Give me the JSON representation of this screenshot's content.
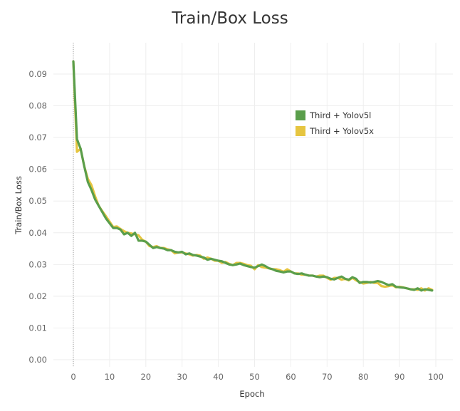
{
  "chart_data": {
    "type": "line",
    "title": "Train/Box Loss",
    "xlabel": "Epoch",
    "ylabel": "Train/Box Loss",
    "xlim": [
      -5.5,
      105
    ],
    "ylim": [
      0,
      0.1
    ],
    "x_ticks": [
      0,
      10,
      20,
      30,
      40,
      50,
      60,
      70,
      80,
      90,
      100
    ],
    "y_ticks": [
      0.0,
      0.01,
      0.02,
      0.03,
      0.04,
      0.05,
      0.06,
      0.07,
      0.08,
      0.09
    ],
    "y_tick_labels": [
      "0.00",
      "0.01",
      "0.02",
      "0.03",
      "0.04",
      "0.05",
      "0.06",
      "0.07",
      "0.08",
      "0.09"
    ],
    "grid": true,
    "legend_position": "top-right",
    "series": [
      {
        "name": "Third + Yolov5l",
        "color": "#5a9e4b",
        "x": [
          0,
          1,
          2,
          3,
          4,
          5,
          6,
          7,
          8,
          9,
          10,
          11,
          12,
          13,
          14,
          15,
          16,
          17,
          18,
          19,
          20,
          21,
          22,
          23,
          24,
          25,
          26,
          27,
          28,
          29,
          30,
          31,
          32,
          33,
          34,
          35,
          36,
          37,
          38,
          39,
          40,
          41,
          42,
          43,
          44,
          45,
          46,
          47,
          48,
          49,
          50,
          51,
          52,
          53,
          54,
          55,
          56,
          57,
          58,
          59,
          60,
          61,
          62,
          63,
          64,
          65,
          66,
          67,
          68,
          69,
          70,
          71,
          72,
          73,
          74,
          75,
          76,
          77,
          78,
          79,
          80,
          81,
          82,
          83,
          84,
          85,
          86,
          87,
          88,
          89,
          90,
          91,
          92,
          93,
          94,
          95,
          96,
          97,
          98,
          99
        ],
        "values": [
          0.094,
          0.0695,
          0.0665,
          0.061,
          0.056,
          0.0535,
          0.0505,
          0.0485,
          0.0465,
          0.0445,
          0.043,
          0.0415,
          0.0415,
          0.041,
          0.0395,
          0.04,
          0.039,
          0.04,
          0.0375,
          0.0375,
          0.0372,
          0.0362,
          0.0352,
          0.0355,
          0.0352,
          0.035,
          0.0345,
          0.0345,
          0.034,
          0.0338,
          0.034,
          0.0332,
          0.0335,
          0.033,
          0.0328,
          0.0325,
          0.0322,
          0.0315,
          0.0318,
          0.0315,
          0.0312,
          0.031,
          0.0305,
          0.03,
          0.0298,
          0.03,
          0.0303,
          0.0298,
          0.0295,
          0.0292,
          0.029,
          0.0295,
          0.03,
          0.0295,
          0.0288,
          0.0285,
          0.028,
          0.0278,
          0.0275,
          0.0278,
          0.0278,
          0.0272,
          0.027,
          0.0272,
          0.0268,
          0.0265,
          0.0265,
          0.0262,
          0.026,
          0.0262,
          0.026,
          0.0255,
          0.0253,
          0.0258,
          0.0262,
          0.0255,
          0.0252,
          0.026,
          0.0255,
          0.0242,
          0.0245,
          0.0245,
          0.0243,
          0.0245,
          0.0248,
          0.0245,
          0.024,
          0.0235,
          0.0238,
          0.023,
          0.0228,
          0.0227,
          0.0225,
          0.0222,
          0.022,
          0.0225,
          0.0218,
          0.0222,
          0.022,
          0.0218
        ]
      },
      {
        "name": "Third + Yolov5x",
        "color": "#e6c540",
        "x": [
          0,
          1,
          2,
          3,
          4,
          5,
          6,
          7,
          8,
          9,
          10,
          11,
          12,
          13,
          14,
          15,
          16,
          17,
          18,
          19,
          20,
          21,
          22,
          23,
          24,
          25,
          26,
          27,
          28,
          29,
          30,
          31,
          32,
          33,
          34,
          35,
          36,
          37,
          38,
          39,
          40,
          41,
          42,
          43,
          44,
          45,
          46,
          47,
          48,
          49,
          50,
          51,
          52,
          53,
          54,
          55,
          56,
          57,
          58,
          59,
          60,
          61,
          62,
          63,
          64,
          65,
          66,
          67,
          68,
          69,
          70,
          71,
          72,
          73,
          74,
          75,
          76,
          77,
          78,
          79,
          80,
          81,
          82,
          83,
          84,
          85,
          86,
          87,
          88,
          89,
          90,
          91,
          92,
          93,
          94,
          95,
          96,
          97,
          98,
          99
        ],
        "values": [
          0.094,
          0.0655,
          0.0665,
          0.061,
          0.057,
          0.055,
          0.0515,
          0.0485,
          0.0468,
          0.0452,
          0.0435,
          0.0418,
          0.042,
          0.0412,
          0.0405,
          0.04,
          0.0398,
          0.0395,
          0.0392,
          0.0378,
          0.0372,
          0.0358,
          0.0355,
          0.0358,
          0.0352,
          0.0352,
          0.0348,
          0.0345,
          0.0335,
          0.0338,
          0.0338,
          0.0335,
          0.0332,
          0.0328,
          0.033,
          0.0328,
          0.0318,
          0.0322,
          0.0318,
          0.0312,
          0.0312,
          0.0305,
          0.0308,
          0.0302,
          0.0298,
          0.0305,
          0.0305,
          0.0302,
          0.0298,
          0.0296,
          0.0285,
          0.0298,
          0.0292,
          0.029,
          0.0288,
          0.0285,
          0.0285,
          0.0282,
          0.0277,
          0.0285,
          0.0278,
          0.0272,
          0.0272,
          0.0268,
          0.0268,
          0.0265,
          0.0265,
          0.0262,
          0.0265,
          0.0265,
          0.0258,
          0.0252,
          0.0258,
          0.0258,
          0.0252,
          0.0255,
          0.025,
          0.0258,
          0.025,
          0.0245,
          0.024,
          0.0242,
          0.0245,
          0.0242,
          0.0242,
          0.0232,
          0.023,
          0.0232,
          0.0235,
          0.0228,
          0.023,
          0.0228,
          0.0225,
          0.0222,
          0.0222,
          0.022,
          0.0225,
          0.0218,
          0.0225,
          0.022
        ]
      }
    ]
  }
}
